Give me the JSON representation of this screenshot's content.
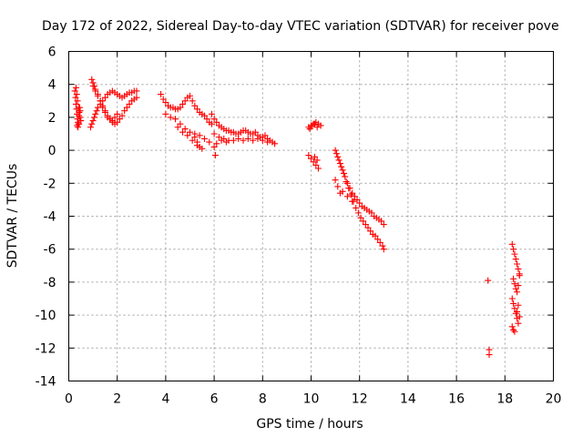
{
  "chart_data": {
    "type": "scatter",
    "title": "Day 172 of 2022, Sidereal Day-to-day VTEC variation (SDTVAR) for receiver pove",
    "xlabel": "GPS time / hours",
    "ylabel": "SDTVAR / TECUs",
    "xlim": [
      0,
      20
    ],
    "ylim": [
      -14,
      6
    ],
    "xticks": [
      0,
      2,
      4,
      6,
      8,
      10,
      12,
      14,
      16,
      18,
      20
    ],
    "yticks": [
      -14,
      -12,
      -10,
      -8,
      -6,
      -4,
      -2,
      0,
      2,
      4,
      6
    ],
    "grid": true,
    "marker": "+",
    "colors": {
      "series": "#ff0000",
      "grid": "#a0a0a0",
      "axis": "#000000"
    },
    "series": [
      {
        "name": "SDTVAR",
        "x": [
          0.25,
          0.28,
          0.3,
          0.32,
          0.34,
          0.36,
          0.38,
          0.4,
          0.42,
          0.45,
          0.3,
          0.33,
          0.36,
          0.4,
          0.43,
          0.46,
          0.5,
          0.35,
          0.38,
          0.42,
          0.47,
          0.9,
          0.95,
          1.0,
          1.05,
          1.1,
          1.15,
          1.2,
          1.3,
          1.4,
          1.5,
          1.6,
          1.7,
          1.8,
          1.9,
          2.0,
          2.1,
          2.2,
          2.3,
          2.4,
          2.5,
          2.6,
          2.7,
          2.8,
          1.0,
          1.1,
          1.2,
          1.3,
          1.4,
          1.5,
          1.6,
          1.7,
          1.8,
          1.9,
          2.0,
          2.1,
          2.2,
          2.3,
          2.4,
          2.5,
          2.6,
          2.7,
          2.8,
          0.95,
          1.0,
          1.05,
          1.1,
          1.2,
          1.3,
          1.4,
          1.5,
          1.6,
          1.7,
          1.8,
          1.9,
          2.0,
          3.8,
          3.9,
          4.0,
          4.1,
          4.2,
          4.3,
          4.4,
          4.5,
          4.6,
          4.7,
          4.8,
          4.9,
          5.0,
          5.1,
          5.2,
          5.3,
          5.4,
          5.5,
          5.6,
          5.7,
          5.8,
          5.9,
          4.0,
          4.2,
          4.4,
          4.6,
          4.8,
          5.0,
          5.2,
          5.4,
          5.6,
          5.8,
          4.5,
          4.7,
          4.9,
          5.1,
          5.3,
          5.5,
          5.2,
          5.3,
          5.4,
          5.9,
          6.0,
          6.1,
          6.2,
          6.3,
          6.4,
          6.5,
          6.6,
          6.7,
          6.8,
          6.9,
          7.0,
          7.1,
          7.2,
          7.3,
          7.4,
          7.5,
          7.6,
          7.7,
          7.8,
          7.9,
          8.0,
          8.1,
          8.2,
          8.3,
          8.4,
          8.5,
          6.0,
          6.2,
          6.4,
          6.6,
          6.8,
          7.0,
          7.2,
          7.4,
          7.6,
          7.8,
          8.0,
          8.2,
          6.1,
          6.3,
          6.5,
          6.0,
          6.05,
          9.9,
          10.0,
          10.1,
          10.2,
          10.3,
          10.4,
          9.95,
          10.05,
          10.15,
          10.25,
          9.9,
          10.0,
          10.1,
          10.2,
          10.3,
          10.15,
          10.25,
          11.0,
          11.1,
          11.2,
          11.3,
          11.4,
          11.5,
          11.6,
          11.7,
          11.8,
          11.9,
          12.0,
          12.1,
          12.2,
          12.3,
          12.4,
          12.5,
          12.6,
          12.7,
          12.8,
          12.9,
          13.0,
          11.05,
          11.15,
          11.25,
          11.35,
          11.45,
          11.55,
          11.65,
          11.75,
          11.85,
          11.95,
          12.05,
          12.15,
          12.25,
          12.35,
          12.45,
          12.55,
          12.65,
          12.75,
          12.85,
          12.95,
          13.0,
          11.1,
          11.3,
          11.5,
          11.7,
          11.0,
          11.2,
          17.3,
          17.35,
          17.35,
          18.3,
          18.35,
          18.4,
          18.45,
          18.5,
          18.55,
          18.6,
          18.35,
          18.4,
          18.45,
          18.5,
          18.55,
          18.6,
          18.3,
          18.35,
          18.4,
          18.45,
          18.5,
          18.55,
          18.6,
          18.3,
          18.35,
          18.4,
          18.5,
          18.55
        ],
        "y": [
          3.6,
          3.2,
          2.8,
          2.5,
          2.2,
          1.9,
          1.7,
          1.6,
          2.1,
          2.6,
          3.8,
          3.4,
          3.0,
          2.6,
          2.3,
          2.0,
          1.8,
          1.5,
          1.4,
          1.6,
          2.4,
          1.4,
          1.6,
          1.8,
          2.0,
          2.2,
          2.4,
          2.6,
          2.8,
          3.0,
          3.2,
          3.4,
          3.5,
          3.6,
          3.5,
          3.4,
          3.3,
          3.2,
          3.3,
          3.4,
          3.5,
          3.5,
          3.6,
          3.6,
          3.9,
          3.6,
          3.3,
          3.0,
          2.7,
          2.4,
          2.1,
          1.9,
          1.7,
          1.6,
          1.7,
          1.9,
          2.1,
          2.4,
          2.6,
          2.8,
          3.0,
          3.1,
          3.2,
          4.3,
          4.1,
          3.9,
          3.7,
          3.4,
          3.0,
          2.6,
          2.3,
          2.0,
          1.9,
          1.8,
          2.0,
          2.2,
          3.4,
          3.1,
          2.9,
          2.7,
          2.6,
          2.6,
          2.5,
          2.5,
          2.6,
          2.8,
          3.0,
          3.2,
          3.3,
          3.0,
          2.7,
          2.5,
          2.3,
          2.2,
          2.1,
          1.9,
          1.7,
          1.6,
          2.2,
          2.0,
          1.9,
          1.6,
          1.3,
          1.1,
          1.0,
          0.9,
          0.7,
          0.5,
          1.4,
          1.1,
          0.9,
          0.6,
          0.3,
          0.1,
          0.8,
          0.5,
          0.2,
          2.2,
          1.9,
          1.7,
          1.5,
          1.4,
          1.3,
          1.2,
          1.2,
          1.1,
          1.1,
          1.0,
          1.0,
          1.1,
          1.2,
          1.2,
          1.1,
          1.0,
          1.0,
          1.1,
          0.9,
          0.8,
          0.8,
          0.9,
          0.7,
          0.6,
          0.5,
          0.4,
          1.0,
          0.8,
          0.7,
          0.6,
          0.6,
          0.7,
          0.6,
          0.7,
          0.6,
          0.7,
          0.6,
          0.5,
          0.4,
          0.6,
          0.5,
          0.2,
          -0.3,
          1.4,
          1.5,
          1.6,
          1.7,
          1.6,
          1.5,
          1.3,
          1.5,
          1.6,
          1.4,
          -0.3,
          -0.5,
          -0.7,
          -0.9,
          -1.1,
          -0.4,
          -0.6,
          0.0,
          -0.4,
          -0.8,
          -1.2,
          -1.6,
          -2.0,
          -2.3,
          -2.6,
          -2.8,
          -3.0,
          -3.2,
          -3.4,
          -3.5,
          -3.6,
          -3.7,
          -3.8,
          -4.0,
          -4.1,
          -4.2,
          -4.3,
          -4.5,
          -0.2,
          -0.6,
          -1.0,
          -1.4,
          -1.9,
          -2.3,
          -2.7,
          -3.1,
          -3.5,
          -3.8,
          -4.1,
          -4.3,
          -4.5,
          -4.7,
          -4.9,
          -5.1,
          -5.2,
          -5.4,
          -5.6,
          -5.8,
          -6.0,
          -2.2,
          -2.5,
          -2.8,
          -3.1,
          -1.8,
          -2.6,
          -7.9,
          -12.1,
          -12.4,
          -5.7,
          -6.0,
          -6.3,
          -6.6,
          -6.9,
          -7.2,
          -7.5,
          -7.8,
          -8.1,
          -8.4,
          -8.6,
          -8.2,
          -7.6,
          -9.0,
          -9.3,
          -9.6,
          -9.9,
          -10.2,
          -10.5,
          -10.1,
          -10.7,
          -10.9,
          -11.0,
          -9.8,
          -9.4
        ]
      }
    ]
  }
}
